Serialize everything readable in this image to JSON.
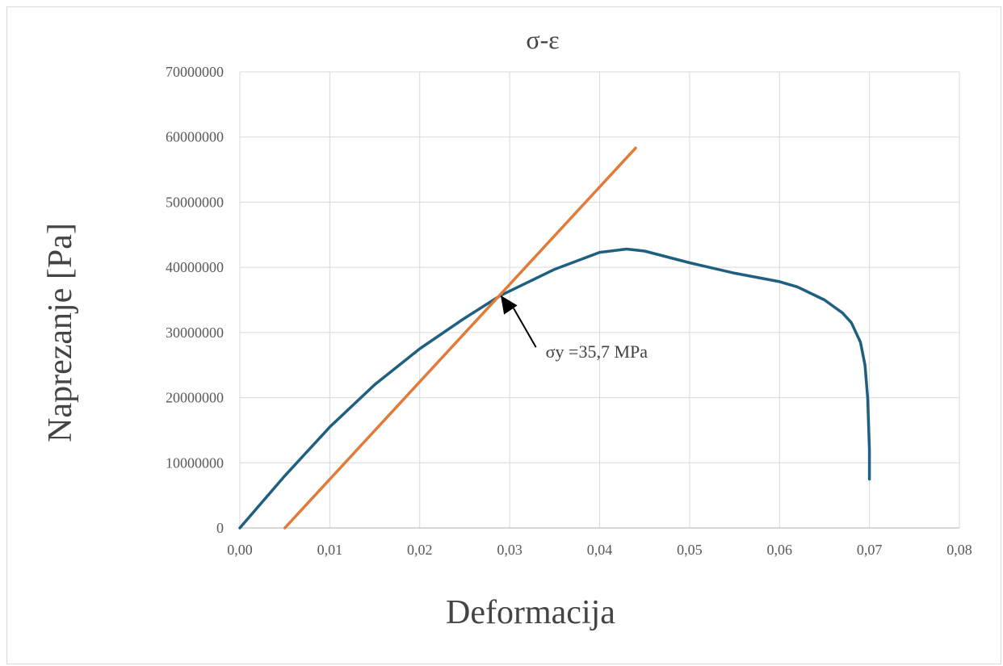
{
  "chart_data": {
    "type": "line",
    "title": "σ-ε",
    "xlabel": "Deformacija",
    "ylabel": "Naprezanje [Pa]",
    "xlim": [
      0,
      0.08
    ],
    "ylim": [
      0,
      70000000
    ],
    "x_tick_labels": [
      "0,00",
      "0,01",
      "0,02",
      "0,03",
      "0,04",
      "0,05",
      "0,06",
      "0,07",
      "0,08"
    ],
    "y_tick_labels": [
      "0",
      "10000000",
      "20000000",
      "30000000",
      "40000000",
      "50000000",
      "60000000",
      "70000000"
    ],
    "grid": true,
    "legend": "none",
    "series": [
      {
        "color": "#1f5f7f",
        "x": [
          0.0,
          0.005,
          0.01,
          0.015,
          0.02,
          0.025,
          0.029,
          0.035,
          0.04,
          0.043,
          0.045,
          0.05,
          0.055,
          0.06,
          0.062,
          0.065,
          0.067,
          0.068,
          0.069,
          0.0695,
          0.0698,
          0.07,
          0.07
        ],
        "y": [
          0,
          8000000,
          15500000,
          22000000,
          27500000,
          32200000,
          35700000,
          39700000,
          42300000,
          42800000,
          42500000,
          40700000,
          39100000,
          37800000,
          37000000,
          35000000,
          33000000,
          31500000,
          28500000,
          25000000,
          20000000,
          12000000,
          7500000
        ]
      },
      {
        "color": "#e07b39",
        "x": [
          0.005,
          0.044
        ],
        "y": [
          0,
          58300000
        ]
      }
    ],
    "annotation": {
      "text": "σy =35,7 MPa",
      "target": [
        0.029,
        35700000
      ],
      "label_at": [
        0.034,
        27000000
      ]
    }
  }
}
